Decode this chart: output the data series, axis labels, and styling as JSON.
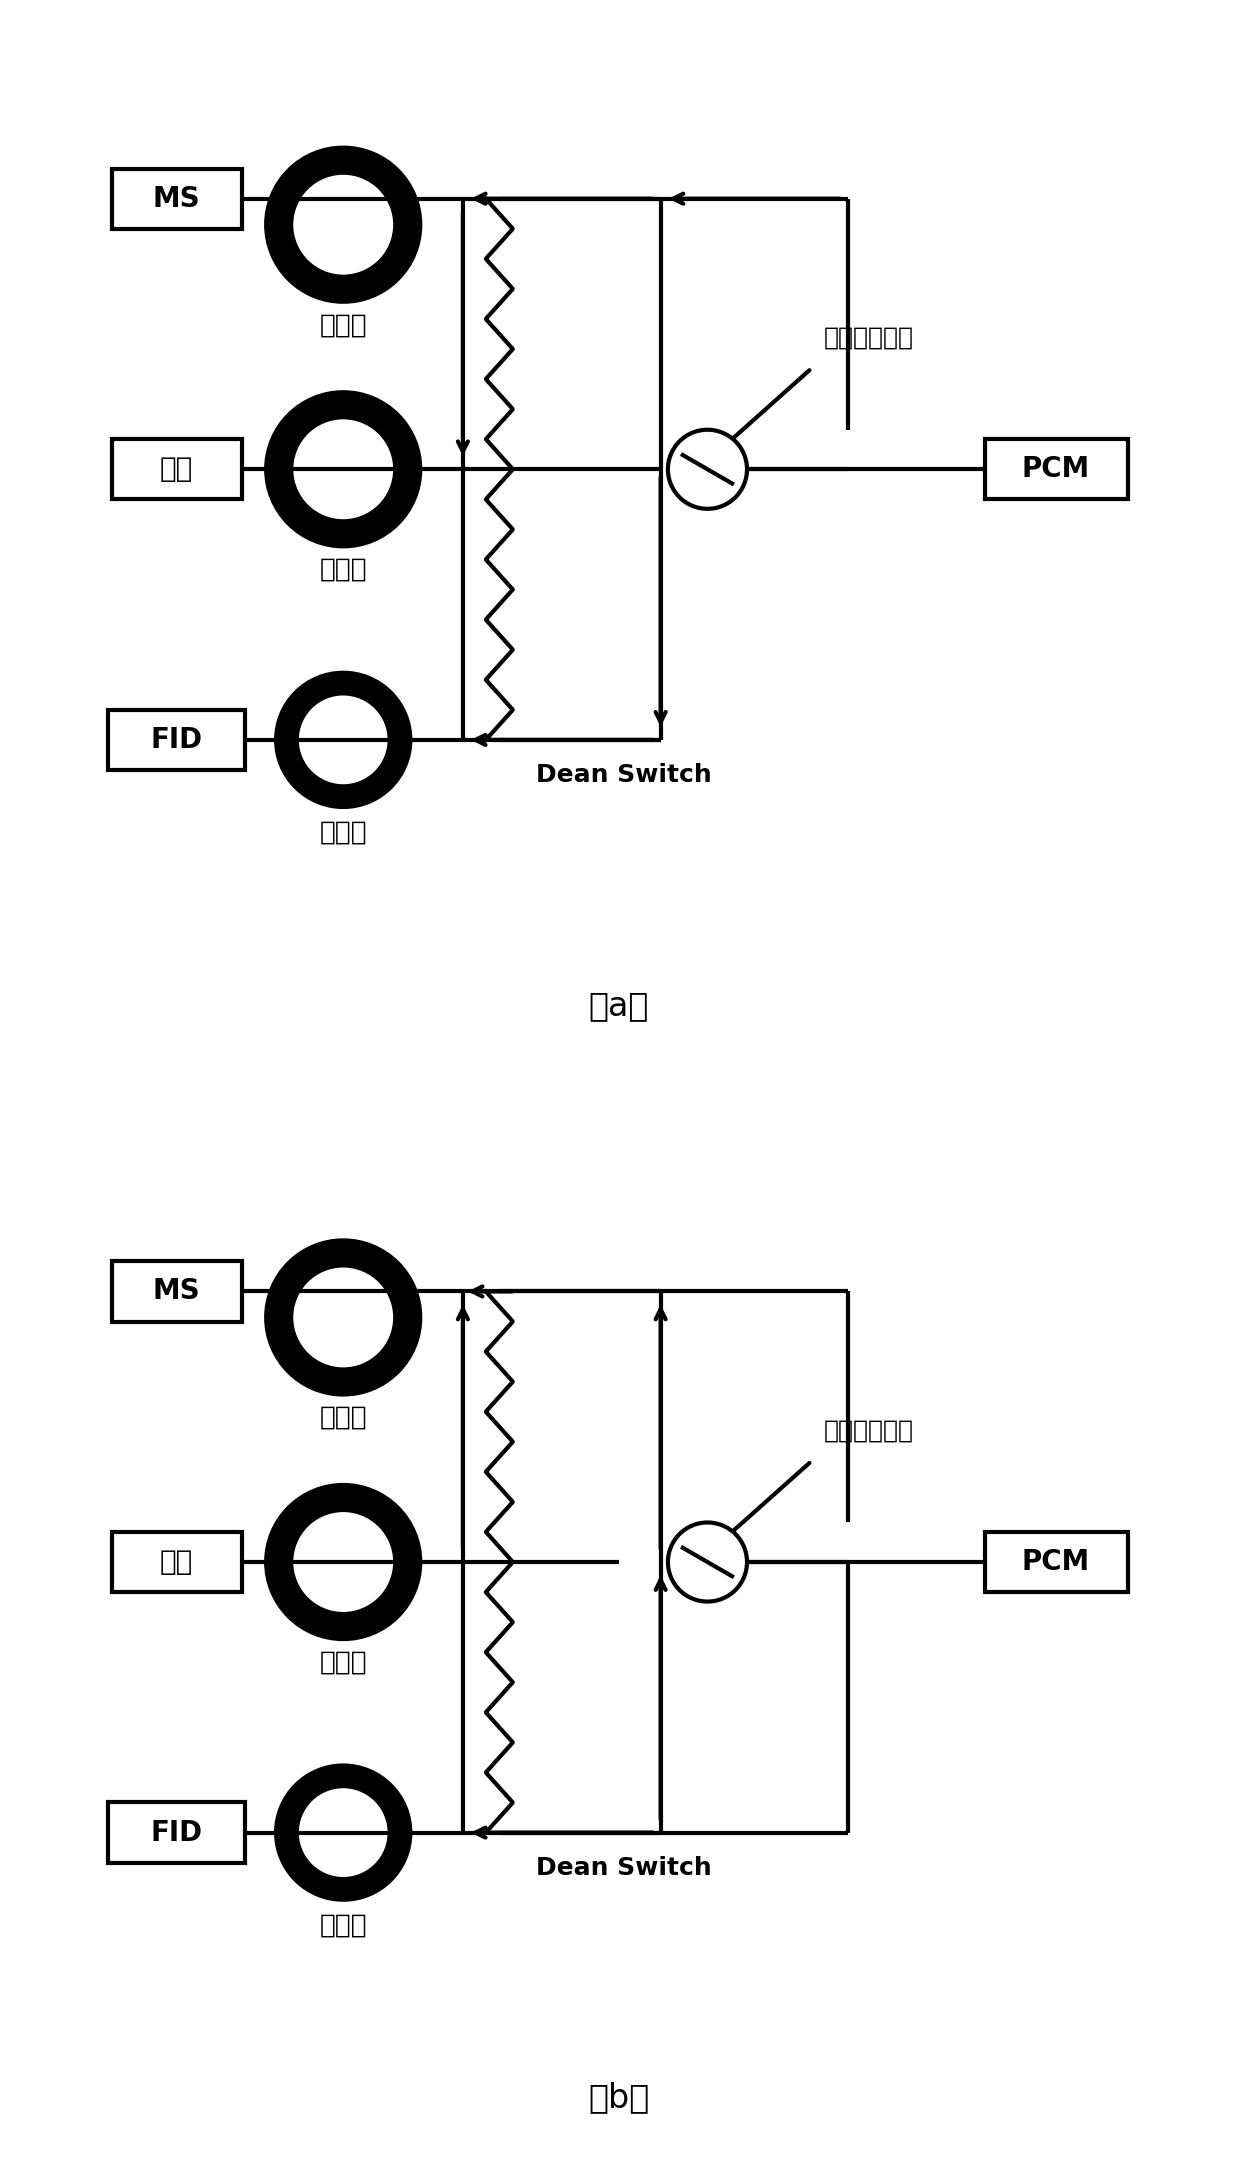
{
  "bg_color": "#ffffff",
  "lw": 3.0,
  "ring_lw_factor": 7.0,
  "fig_width": 12.38,
  "fig_height": 21.77,
  "diagrams": [
    {
      "valve_open": true,
      "title": "（a）",
      "valve_label": "电磁阀（开）",
      "labels": {
        "ms": "MS",
        "sp": "样品",
        "fid": "FID",
        "pcm": "PCM",
        "dean": "Dean Switch",
        "coil1": "阻尼管",
        "coil2": "色谱柱",
        "coil3": "阻尼管"
      }
    },
    {
      "valve_open": false,
      "title": "（b）",
      "valve_label": "电磁阀（关）",
      "labels": {
        "ms": "MS",
        "sp": "样品",
        "fid": "FID",
        "pcm": "PCM",
        "dean": "Dean Switch",
        "coil1": "阻尼管",
        "coil2": "色谱柱",
        "coil3": "阻尼管"
      }
    }
  ]
}
